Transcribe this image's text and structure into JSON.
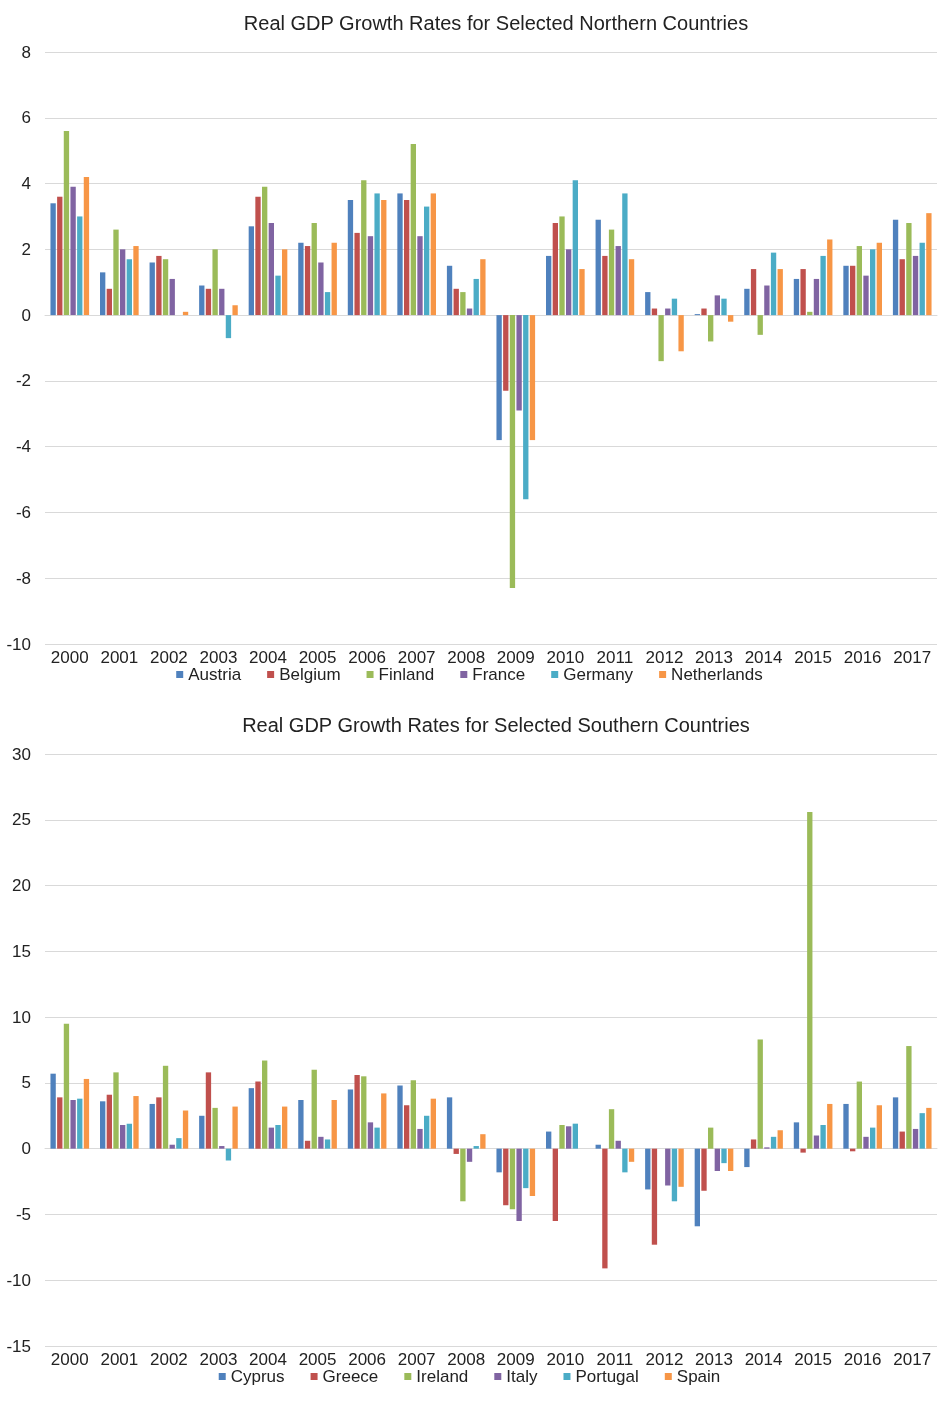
{
  "chart_data": [
    {
      "type": "bar",
      "title": "Real GDP Growth Rates for Selected Northern Countries",
      "categories": [
        "2000",
        "2001",
        "2002",
        "2003",
        "2004",
        "2005",
        "2006",
        "2007",
        "2008",
        "2009",
        "2010",
        "2011",
        "2012",
        "2013",
        "2014",
        "2015",
        "2016",
        "2017"
      ],
      "series": [
        {
          "name": "Austria",
          "color": "#4f81bd",
          "values": [
            3.4,
            1.3,
            1.6,
            0.9,
            2.7,
            2.2,
            3.5,
            3.7,
            1.5,
            -3.8,
            1.8,
            2.9,
            0.7,
            0.03,
            0.8,
            1.1,
            1.5,
            2.9
          ]
        },
        {
          "name": "Belgium",
          "color": "#c0504d",
          "values": [
            3.6,
            0.8,
            1.8,
            0.8,
            3.6,
            2.1,
            2.5,
            3.5,
            0.8,
            -2.3,
            2.8,
            1.8,
            0.2,
            0.2,
            1.4,
            1.4,
            1.5,
            1.7
          ]
        },
        {
          "name": "Finland",
          "color": "#9bbb59",
          "values": [
            5.6,
            2.6,
            1.7,
            2.0,
            3.9,
            2.8,
            4.1,
            5.2,
            0.7,
            -8.3,
            3.0,
            2.6,
            -1.4,
            -0.8,
            -0.6,
            0.1,
            2.1,
            2.8
          ]
        },
        {
          "name": "France",
          "color": "#8064a2",
          "values": [
            3.9,
            2.0,
            1.1,
            0.8,
            2.8,
            1.6,
            2.4,
            2.4,
            0.2,
            -2.9,
            2.0,
            2.1,
            0.2,
            0.6,
            0.9,
            1.1,
            1.2,
            1.8
          ]
        },
        {
          "name": "Germany",
          "color": "#4bacc6",
          "values": [
            3.0,
            1.7,
            0.0,
            -0.7,
            1.2,
            0.7,
            3.7,
            3.3,
            1.1,
            -5.6,
            4.1,
            3.7,
            0.5,
            0.5,
            1.9,
            1.8,
            2.0,
            2.2
          ]
        },
        {
          "name": "Netherlands",
          "color": "#f79646",
          "values": [
            4.2,
            2.1,
            0.1,
            0.3,
            2.0,
            2.2,
            3.5,
            3.7,
            1.7,
            -3.8,
            1.4,
            1.7,
            -1.1,
            -0.2,
            1.4,
            2.3,
            2.2,
            3.1
          ]
        }
      ],
      "ylim": [
        -10,
        8
      ],
      "yticks": [
        -10,
        -8,
        -6,
        -4,
        -2,
        0,
        2,
        4,
        6,
        8
      ],
      "grid": "y",
      "legend": "bottom"
    },
    {
      "type": "bar",
      "title": "Real GDP Growth Rates for Selected Southern Countries",
      "categories": [
        "2000",
        "2001",
        "2002",
        "2003",
        "2004",
        "2005",
        "2006",
        "2007",
        "2008",
        "2009",
        "2010",
        "2011",
        "2012",
        "2013",
        "2014",
        "2015",
        "2016",
        "2017"
      ],
      "series": [
        {
          "name": "Cyprus",
          "color": "#4f81bd",
          "values": [
            5.7,
            3.6,
            3.4,
            2.5,
            4.6,
            3.7,
            4.5,
            4.8,
            3.9,
            -1.8,
            1.3,
            0.3,
            -3.1,
            -5.9,
            -1.4,
            2.0,
            3.4,
            3.9
          ]
        },
        {
          "name": "Greece",
          "color": "#c0504d",
          "values": [
            3.9,
            4.1,
            3.9,
            5.8,
            5.1,
            0.6,
            5.6,
            3.3,
            -0.4,
            -4.3,
            -5.5,
            -9.1,
            -7.3,
            -3.2,
            0.7,
            -0.3,
            -0.2,
            1.3
          ]
        },
        {
          "name": "Ireland",
          "color": "#9bbb59",
          "values": [
            9.5,
            5.8,
            6.3,
            3.1,
            6.7,
            6.0,
            5.5,
            5.2,
            -4.0,
            -4.6,
            1.8,
            3.0,
            0.0,
            1.6,
            8.3,
            25.6,
            5.1,
            7.8
          ]
        },
        {
          "name": "Italy",
          "color": "#8064a2",
          "values": [
            3.7,
            1.8,
            0.3,
            0.2,
            1.6,
            0.9,
            2.0,
            1.5,
            -1.0,
            -5.5,
            1.7,
            0.6,
            -2.8,
            -1.7,
            0.1,
            1.0,
            0.9,
            1.5
          ]
        },
        {
          "name": "Portugal",
          "color": "#4bacc6",
          "values": [
            3.8,
            1.9,
            0.8,
            -0.9,
            1.8,
            0.7,
            1.6,
            2.5,
            0.2,
            -3.0,
            1.9,
            -1.8,
            -4.0,
            -1.1,
            0.9,
            1.8,
            1.6,
            2.7
          ]
        },
        {
          "name": "Spain",
          "color": "#f79646",
          "values": [
            5.3,
            4.0,
            2.9,
            3.2,
            3.2,
            3.7,
            4.2,
            3.8,
            1.1,
            -3.6,
            0.0,
            -1.0,
            -2.9,
            -1.7,
            1.4,
            3.4,
            3.3,
            3.1
          ]
        }
      ],
      "ylim": [
        -15,
        30
      ],
      "yticks": [
        -15,
        -10,
        -5,
        0,
        5,
        10,
        15,
        20,
        25,
        30
      ],
      "grid": "y",
      "legend": "bottom"
    }
  ]
}
